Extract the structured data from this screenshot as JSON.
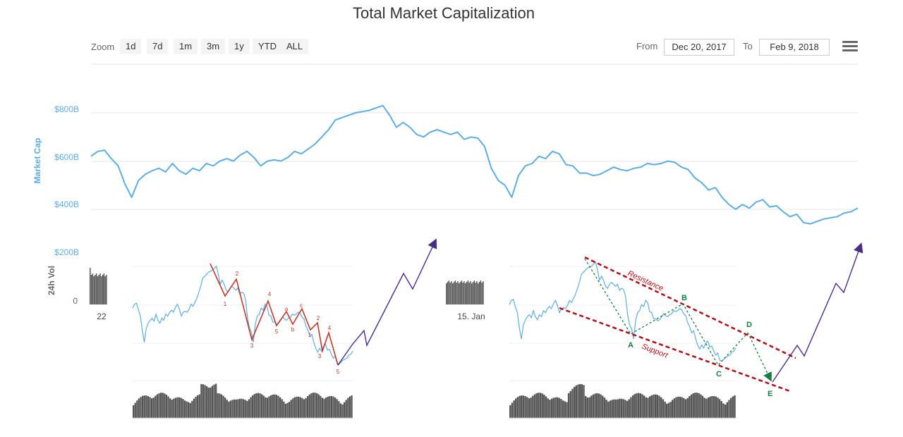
{
  "chart_data": [
    {
      "type": "line",
      "title": "Total Market Capitalization",
      "ylabel": "Market Cap",
      "ylim": [
        0,
        900
      ],
      "y_ticks": [
        "$800B",
        "$600B",
        "$400B",
        "$200B"
      ],
      "x_start": "Dec 20, 2017",
      "x_end": "Feb 9, 2018",
      "series": [
        {
          "values": [
            620,
            640,
            645,
            610,
            580,
            505,
            450,
            520,
            545,
            560,
            570,
            555,
            590,
            560,
            545,
            570,
            560,
            590,
            580,
            600,
            610,
            600,
            625,
            640,
            615,
            580,
            600,
            605,
            600,
            615,
            640,
            630,
            650,
            670,
            700,
            730,
            770,
            780,
            790,
            800,
            805,
            810,
            820,
            830,
            790,
            740,
            760,
            740,
            710,
            700,
            720,
            730,
            720,
            710,
            720,
            690,
            700,
            695,
            660,
            570,
            520,
            500,
            450,
            540,
            580,
            590,
            620,
            610,
            640,
            630,
            585,
            580,
            550,
            550,
            540,
            545,
            560,
            575,
            565,
            560,
            570,
            575,
            590,
            585,
            590,
            600,
            595,
            575,
            565,
            530,
            510,
            480,
            490,
            450,
            420,
            400,
            420,
            405,
            430,
            440,
            410,
            415,
            390,
            370,
            380,
            345,
            340,
            350,
            360,
            365,
            370,
            385,
            390,
            405
          ]
        }
      ]
    },
    {
      "type": "bar",
      "ylabel": "24h Vol",
      "y_ticks": [
        "0"
      ],
      "x_ticks": [
        "22",
        "15. Jan"
      ]
    }
  ],
  "toolbar": {
    "zoom_label": "Zoom",
    "buttons": [
      "1d",
      "7d",
      "1m",
      "3m",
      "1y",
      "YTD",
      "ALL"
    ],
    "from_label": "From",
    "from_value": "Dec 20, 2017",
    "to_label": "To",
    "to_value": "Feb 9, 2018"
  },
  "overlay_left": {
    "wave_labels": [
      "1",
      "2",
      "3",
      "4",
      "5",
      "a",
      "b",
      "c",
      "1",
      "2",
      "3",
      "4",
      "5"
    ]
  },
  "overlay_right": {
    "resistance_label": "Resistance",
    "support_label": "Support",
    "points": [
      "A",
      "B",
      "C",
      "D",
      "E"
    ]
  },
  "colors": {
    "line": "#5dade2",
    "grid": "#e6e6e6",
    "axis_text": "#5dade2",
    "wave": "#c0392b",
    "trend": "#b0101a",
    "abcde": "#1a7d42",
    "arrow": "#4a2c8a",
    "volume": "#555555"
  }
}
